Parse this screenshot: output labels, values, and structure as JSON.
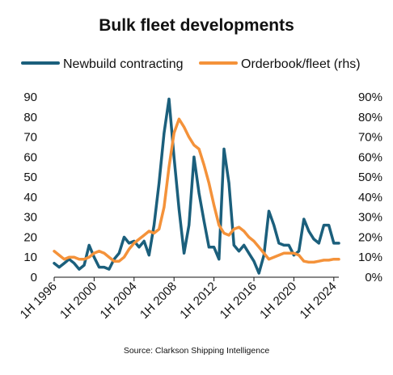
{
  "chart_data": {
    "type": "line",
    "title": "Bulk fleet developments",
    "source": "Source: Clarkson Shipping Intelligence",
    "x_tick_labels": [
      "1H 1996",
      "1H 2000",
      "1H 2004",
      "1H 2008",
      "1H 2012",
      "1H 2016",
      "1H 2020",
      "1H 2024"
    ],
    "x_range": [
      1996.0,
      2024.5
    ],
    "y_left": {
      "range": [
        0,
        90
      ],
      "ticks": [
        "0",
        "10",
        "20",
        "30",
        "40",
        "50",
        "60",
        "70",
        "80",
        "90"
      ]
    },
    "y_right": {
      "range": [
        0,
        90
      ],
      "ticks": [
        "0%",
        "10%",
        "20%",
        "30%",
        "40%",
        "50%",
        "60%",
        "70%",
        "80%",
        "90%"
      ]
    },
    "grid": false,
    "legend_position": "top",
    "colors": {
      "newbuild": "#1b5f7c",
      "orderbook": "#f4923a"
    },
    "series": [
      {
        "name": "Newbuild contracting",
        "axis": "left",
        "color": "#1b5f7c",
        "x": [
          1996.0,
          1996.5,
          1997.0,
          1997.5,
          1998.0,
          1998.5,
          1999.0,
          1999.5,
          2000.0,
          2000.5,
          2001.0,
          2001.5,
          2002.0,
          2002.5,
          2003.0,
          2003.5,
          2004.0,
          2004.5,
          2005.0,
          2005.5,
          2006.0,
          2006.5,
          2007.0,
          2007.5,
          2008.0,
          2008.5,
          2009.0,
          2009.5,
          2010.0,
          2010.5,
          2011.0,
          2011.5,
          2012.0,
          2012.5,
          2013.0,
          2013.5,
          2014.0,
          2014.5,
          2015.0,
          2015.5,
          2016.0,
          2016.5,
          2017.0,
          2017.5,
          2018.0,
          2018.5,
          2019.0,
          2019.5,
          2020.0,
          2020.5,
          2021.0,
          2021.5,
          2022.0,
          2022.5,
          2023.0,
          2023.5,
          2024.0,
          2024.5
        ],
        "values": [
          7,
          5,
          7,
          9,
          7,
          4,
          6,
          16,
          10,
          5,
          5,
          4,
          9,
          12,
          20,
          17,
          18,
          15,
          18,
          11,
          26,
          47,
          72,
          89,
          60,
          34,
          12,
          26,
          60,
          42,
          28,
          15,
          15,
          9,
          64,
          47,
          16,
          13,
          16,
          12,
          8,
          2,
          11,
          33,
          26,
          17,
          16,
          16,
          11,
          13,
          29,
          23,
          19,
          17,
          26,
          26,
          17,
          17
        ]
      },
      {
        "name": "Orderbook/fleet (rhs)",
        "axis": "right",
        "color": "#f4923a",
        "x": [
          1996.0,
          1996.5,
          1997.0,
          1997.5,
          1998.0,
          1998.5,
          1999.0,
          1999.5,
          2000.0,
          2000.5,
          2001.0,
          2001.5,
          2002.0,
          2002.5,
          2003.0,
          2003.5,
          2004.0,
          2004.5,
          2005.0,
          2005.5,
          2006.0,
          2006.5,
          2007.0,
          2007.5,
          2008.0,
          2008.5,
          2009.0,
          2009.5,
          2010.0,
          2010.5,
          2011.0,
          2011.5,
          2012.0,
          2012.5,
          2013.0,
          2013.5,
          2014.0,
          2014.5,
          2015.0,
          2015.5,
          2016.0,
          2016.5,
          2017.0,
          2017.5,
          2018.0,
          2018.5,
          2019.0,
          2019.5,
          2020.0,
          2020.5,
          2021.0,
          2021.5,
          2022.0,
          2022.5,
          2023.0,
          2023.5,
          2024.0,
          2024.5
        ],
        "values": [
          13,
          11,
          9,
          10,
          10,
          9,
          9,
          10,
          12,
          13,
          12,
          10,
          8,
          8,
          10,
          14,
          17,
          19,
          21,
          23,
          22,
          24,
          35,
          55,
          72,
          79,
          75,
          70,
          66,
          64,
          56,
          47,
          36,
          26,
          22,
          21,
          24,
          25,
          23,
          20,
          18,
          15,
          12,
          9,
          10,
          11,
          12,
          12,
          12,
          11,
          8,
          7.5,
          7.5,
          8,
          8.5,
          8.5,
          9,
          9
        ]
      }
    ]
  }
}
